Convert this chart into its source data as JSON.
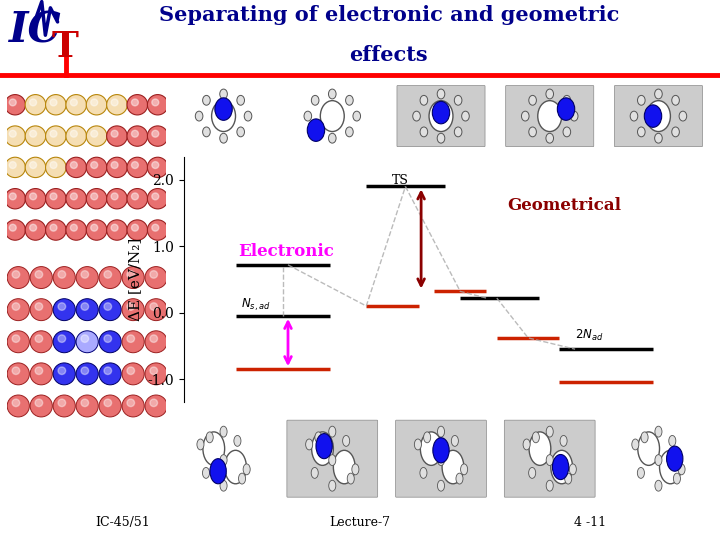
{
  "title_line1": "Separating of electronic and geometric",
  "title_line2": "effects",
  "title_color": "#00008B",
  "header_line_color": "#FF0000",
  "ylabel": "ΔE [eV/N₂]",
  "yticks": [
    -1.0,
    0.0,
    1.0,
    2.0
  ],
  "ytick_labels": [
    "-1.0",
    "0.0",
    "1.0",
    "2.0"
  ],
  "ylim": [
    -1.35,
    2.35
  ],
  "xlim": [
    0.0,
    10.0
  ],
  "background": "#FFFFFF",
  "footer_text": "IC-45/51                    Lecture-7                    4 -11",
  "geom_color": "#8B0000",
  "elec_color": "#FF00FF",
  "red_level_color": "#CC2200",
  "black_level_color": "#000000",
  "dashed_color": "#AAAAAA"
}
